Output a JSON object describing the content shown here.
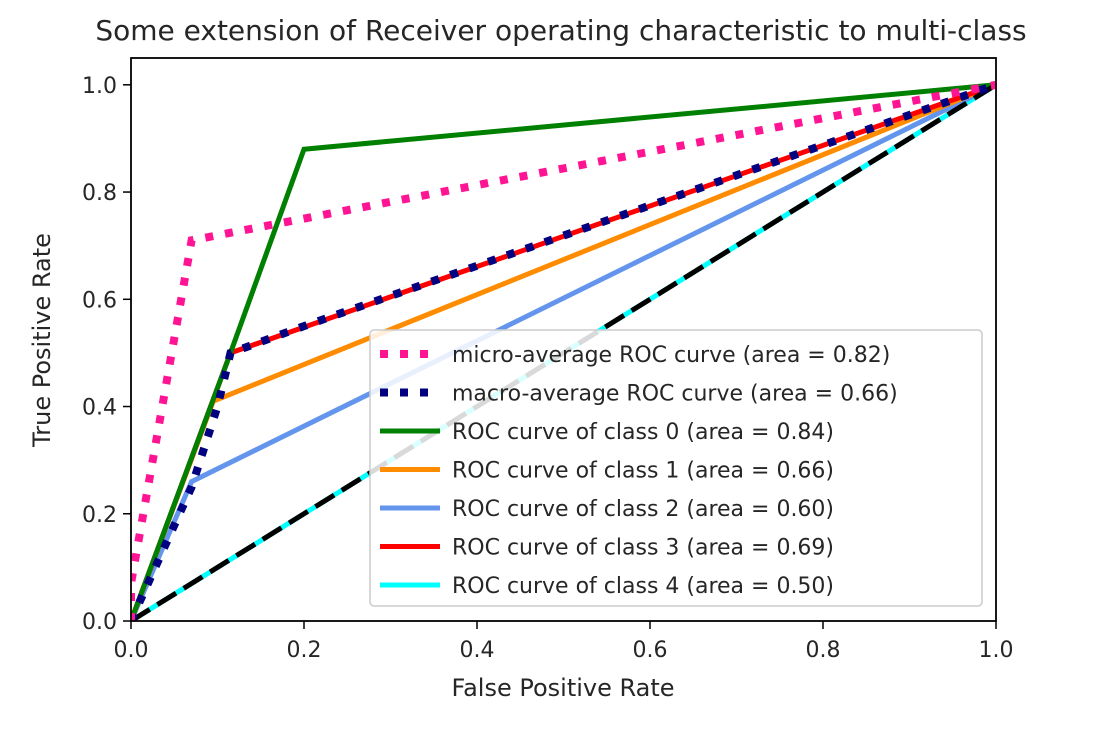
{
  "chart_data": {
    "type": "line",
    "title": "Some extension of Receiver operating characteristic to multi-class",
    "xlabel": "False Positive Rate",
    "ylabel": "True Positive Rate",
    "xlim": [
      0.0,
      1.0
    ],
    "ylim": [
      0.0,
      1.05
    ],
    "xticks": [
      "0.0",
      "0.2",
      "0.4",
      "0.6",
      "0.8",
      "1.0"
    ],
    "yticks": [
      "0.0",
      "0.2",
      "0.4",
      "0.6",
      "0.8",
      "1.0"
    ],
    "legend_position": "lower-right",
    "series": [
      {
        "name": "micro-average ROC curve (area = 0.82)",
        "color": "#ff1493",
        "style": "dotted",
        "points": [
          [
            0.0,
            0.0
          ],
          [
            0.0,
            0.07
          ],
          [
            0.07,
            0.71
          ],
          [
            1.0,
            1.0
          ]
        ]
      },
      {
        "name": "macro-average ROC curve (area = 0.66)",
        "color": "#000080",
        "style": "dotted",
        "points": [
          [
            0.0,
            0.0
          ],
          [
            0.07,
            0.25
          ],
          [
            0.1,
            0.4
          ],
          [
            0.115,
            0.5
          ],
          [
            0.2,
            0.55
          ],
          [
            1.0,
            1.0
          ]
        ]
      },
      {
        "name": "ROC curve of class 0 (area = 0.84)",
        "color": "#008000",
        "style": "solid",
        "points": [
          [
            0.0,
            0.0
          ],
          [
            0.115,
            0.5
          ],
          [
            0.2,
            0.88
          ],
          [
            1.0,
            1.0
          ]
        ]
      },
      {
        "name": "ROC curve of class 1 (area = 0.66)",
        "color": "#ff8c00",
        "style": "solid",
        "points": [
          [
            0.0,
            0.0
          ],
          [
            0.095,
            0.41
          ],
          [
            1.0,
            1.0
          ]
        ]
      },
      {
        "name": "ROC curve of class 2 (area = 0.60)",
        "color": "#6495ed",
        "style": "solid",
        "points": [
          [
            0.0,
            0.0
          ],
          [
            0.07,
            0.26
          ],
          [
            1.0,
            1.0
          ]
        ]
      },
      {
        "name": "ROC curve of class 3 (area = 0.69)",
        "color": "#ff0000",
        "style": "solid",
        "points": [
          [
            0.0,
            0.0
          ],
          [
            0.115,
            0.5
          ],
          [
            1.0,
            1.0
          ]
        ]
      },
      {
        "name": "ROC curve of class 4 (area = 0.50)",
        "color": "#00ffff",
        "style": "solid",
        "points": [
          [
            0.0,
            0.0
          ],
          [
            1.0,
            1.0
          ]
        ]
      }
    ],
    "reference_line": {
      "name": "chance-diagonal",
      "color": "#000000",
      "style": "dashed",
      "points": [
        [
          0.0,
          0.0
        ],
        [
          1.0,
          1.0
        ]
      ]
    }
  }
}
